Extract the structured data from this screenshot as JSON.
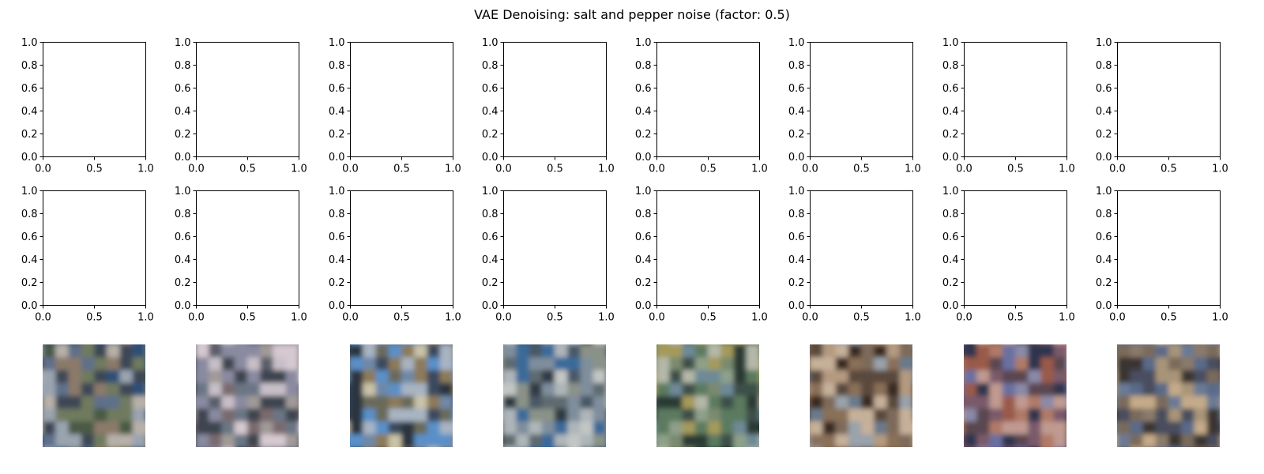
{
  "title": "VAE Denoising: salt and pepper noise (factor: 0.5)",
  "chart_data": {
    "type": "image-grid",
    "title": "VAE Denoising: salt and pepper noise (factor: 0.5)",
    "rows": 3,
    "columns": 8,
    "empty_axes_rows": [
      {
        "row": 1,
        "xlim": [
          0.0,
          1.0
        ],
        "ylim": [
          0.0,
          1.0
        ],
        "xticks": [
          "0.0",
          "0.5",
          "1.0"
        ],
        "yticks": [
          "0.0",
          "0.2",
          "0.4",
          "0.6",
          "0.8",
          "1.0"
        ]
      },
      {
        "row": 2,
        "xlim": [
          0.0,
          1.0
        ],
        "ylim": [
          0.0,
          1.0
        ],
        "xticks": [
          "0.0",
          "0.5",
          "1.0"
        ],
        "yticks": [
          "0.0",
          "0.2",
          "0.4",
          "0.6",
          "0.8",
          "1.0"
        ]
      }
    ],
    "image_row": {
      "row": 3,
      "axes": "off",
      "palettes": [
        [
          "#5e6f8a",
          "#3e4656",
          "#9aa4b0",
          "#6f7a5e",
          "#2f4f78",
          "#b7b0a8",
          "#4a5a44",
          "#8b7a6a"
        ],
        [
          "#8a8aa0",
          "#5a5e6a",
          "#c7bfc8",
          "#3c4450",
          "#a09a98",
          "#6a7684",
          "#d6c9d0",
          "#7a6a6e"
        ],
        [
          "#6f88a8",
          "#3a4a5e",
          "#a7b4c2",
          "#8c7a5a",
          "#5a90c8",
          "#2a3440",
          "#c9c2a8",
          "#6a6a5a"
        ],
        [
          "#7f8e9c",
          "#4a5866",
          "#aeb6ba",
          "#3a6a9a",
          "#8a9288",
          "#5e6a70",
          "#c2c6c4",
          "#2e3a44"
        ],
        [
          "#5c7a5e",
          "#3c5048",
          "#8ea08a",
          "#a49a5c",
          "#6e8a96",
          "#2a3a34",
          "#b4b8a8",
          "#7a8a70"
        ],
        [
          "#8a7058",
          "#5a4a3c",
          "#b49a80",
          "#6a7a8a",
          "#3a2a24",
          "#c6b09a",
          "#7e6a5a",
          "#9aa2aa"
        ],
        [
          "#9a5a4a",
          "#5a4650",
          "#b07a68",
          "#6a70a0",
          "#2e3450",
          "#c09a90",
          "#7a5a6a",
          "#8a8aa8"
        ],
        [
          "#7a6a5a",
          "#4a4e5e",
          "#a89478",
          "#5a6a88",
          "#3a3430",
          "#c4aa88",
          "#8a7a6a",
          "#6a7a94"
        ]
      ]
    }
  }
}
